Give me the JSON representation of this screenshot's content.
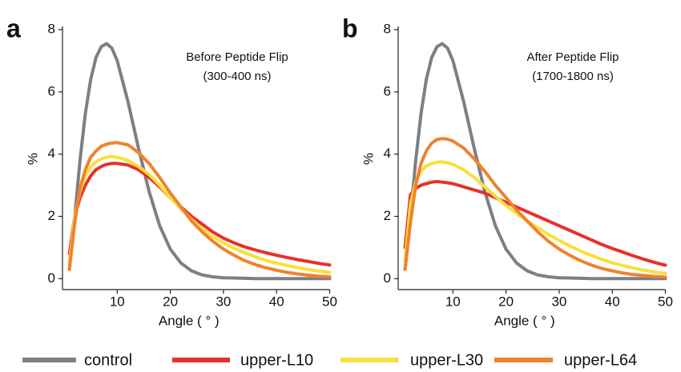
{
  "chart_data": [
    {
      "type": "line",
      "panel_label": "a",
      "annotation": [
        "Before Peptide Flip",
        "(300-400 ns)"
      ],
      "x_label": "Angle ( ° )",
      "y_label": "%",
      "xlim": [
        0,
        50
      ],
      "ylim": [
        -0.3,
        8
      ],
      "xticks": [
        10,
        20,
        30,
        40,
        50
      ],
      "yticks": [
        0,
        2,
        4,
        6,
        8
      ],
      "x": [
        1,
        2,
        3,
        4,
        5,
        6,
        7,
        8,
        9,
        10,
        12,
        14,
        16,
        18,
        20,
        22,
        24,
        26,
        28,
        30,
        32,
        34,
        36,
        38,
        40,
        42,
        44,
        46,
        48,
        50
      ],
      "series": [
        {
          "name": "control",
          "color": "#7e7e86",
          "values": [
            0.3,
            2.0,
            3.8,
            5.3,
            6.4,
            7.1,
            7.45,
            7.55,
            7.4,
            7.0,
            5.7,
            4.2,
            2.8,
            1.7,
            0.95,
            0.5,
            0.25,
            0.12,
            0.06,
            0.03,
            0.02,
            0.01,
            0,
            0,
            0,
            0,
            0,
            0,
            0,
            0
          ]
        },
        {
          "name": "upper-L10",
          "color": "#e8302a",
          "values": [
            0.8,
            2.0,
            2.6,
            3.0,
            3.3,
            3.5,
            3.6,
            3.67,
            3.7,
            3.7,
            3.65,
            3.5,
            3.25,
            2.95,
            2.6,
            2.3,
            2.0,
            1.75,
            1.5,
            1.3,
            1.15,
            1.02,
            0.92,
            0.83,
            0.75,
            0.68,
            0.61,
            0.55,
            0.49,
            0.44
          ]
        },
        {
          "name": "upper-L30",
          "color": "#f7e03a",
          "values": [
            0.5,
            2.0,
            2.8,
            3.3,
            3.6,
            3.75,
            3.85,
            3.9,
            3.92,
            3.9,
            3.8,
            3.6,
            3.35,
            3.0,
            2.6,
            2.25,
            1.9,
            1.6,
            1.35,
            1.15,
            0.98,
            0.83,
            0.7,
            0.59,
            0.5,
            0.42,
            0.35,
            0.29,
            0.24,
            0.2
          ]
        },
        {
          "name": "upper-L64",
          "color": "#f0822e",
          "values": [
            0.3,
            1.8,
            2.9,
            3.5,
            3.9,
            4.1,
            4.25,
            4.32,
            4.36,
            4.37,
            4.3,
            4.05,
            3.7,
            3.25,
            2.75,
            2.3,
            1.85,
            1.5,
            1.2,
            0.95,
            0.75,
            0.58,
            0.45,
            0.35,
            0.27,
            0.2,
            0.15,
            0.11,
            0.08,
            0.06
          ]
        }
      ]
    },
    {
      "type": "line",
      "panel_label": "b",
      "annotation": [
        "After Peptide Flip",
        "(1700-1800 ns)"
      ],
      "x_label": "Angle ( ° )",
      "y_label": "%",
      "xlim": [
        0,
        50
      ],
      "ylim": [
        -0.3,
        8
      ],
      "xticks": [
        10,
        20,
        30,
        40,
        50
      ],
      "yticks": [
        0,
        2,
        4,
        6,
        8
      ],
      "x": [
        1,
        2,
        3,
        4,
        5,
        6,
        7,
        8,
        9,
        10,
        12,
        14,
        16,
        18,
        20,
        22,
        24,
        26,
        28,
        30,
        32,
        34,
        36,
        38,
        40,
        42,
        44,
        46,
        48,
        50
      ],
      "series": [
        {
          "name": "control",
          "color": "#7e7e86",
          "values": [
            0.3,
            2.0,
            3.8,
            5.3,
            6.4,
            7.1,
            7.45,
            7.55,
            7.4,
            7.0,
            5.7,
            4.2,
            2.8,
            1.7,
            0.95,
            0.5,
            0.25,
            0.12,
            0.06,
            0.03,
            0.02,
            0.01,
            0,
            0,
            0,
            0,
            0,
            0,
            0,
            0
          ]
        },
        {
          "name": "upper-L10",
          "color": "#e8302a",
          "values": [
            1.0,
            2.7,
            2.9,
            3.0,
            3.05,
            3.1,
            3.12,
            3.1,
            3.08,
            3.05,
            2.95,
            2.85,
            2.75,
            2.6,
            2.45,
            2.3,
            2.15,
            2.0,
            1.85,
            1.7,
            1.55,
            1.4,
            1.25,
            1.1,
            0.97,
            0.85,
            0.73,
            0.62,
            0.52,
            0.43
          ]
        },
        {
          "name": "upper-L30",
          "color": "#f7e03a",
          "values": [
            0.6,
            2.4,
            3.1,
            3.45,
            3.62,
            3.7,
            3.74,
            3.75,
            3.72,
            3.67,
            3.5,
            3.25,
            2.95,
            2.65,
            2.35,
            2.1,
            1.85,
            1.63,
            1.42,
            1.23,
            1.05,
            0.89,
            0.75,
            0.62,
            0.51,
            0.42,
            0.34,
            0.27,
            0.21,
            0.17
          ]
        },
        {
          "name": "upper-L64",
          "color": "#f0822e",
          "values": [
            0.3,
            1.8,
            3.0,
            3.7,
            4.1,
            4.35,
            4.47,
            4.5,
            4.48,
            4.42,
            4.2,
            3.85,
            3.45,
            3.0,
            2.6,
            2.2,
            1.85,
            1.5,
            1.2,
            0.95,
            0.75,
            0.58,
            0.44,
            0.33,
            0.25,
            0.18,
            0.13,
            0.1,
            0.07,
            0.05
          ]
        }
      ]
    }
  ]
}
